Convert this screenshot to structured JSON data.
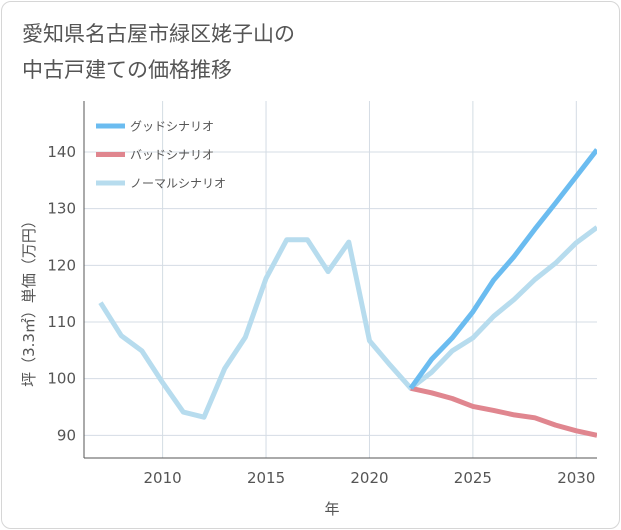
{
  "title_lines": [
    "愛知県名古屋市緑区姥子山の",
    "中古戸建ての価格推移"
  ],
  "chart_data": {
    "type": "line",
    "title": "愛知県名古屋市緑区姥子山の中古戸建ての価格推移",
    "xlabel": "年",
    "ylabel": "坪（3.3㎡）単価（万円）",
    "xlim": [
      2006.2,
      2031
    ],
    "ylim": [
      86,
      149
    ],
    "x_ticks": [
      2010,
      2015,
      2020,
      2025,
      2030
    ],
    "y_ticks": [
      90,
      100,
      110,
      120,
      130,
      140
    ],
    "grid": true,
    "legend_position": "top-left",
    "series": [
      {
        "name": "グッドシナリオ",
        "color": "#6bbcf0",
        "x": [
          2022,
          2023,
          2024,
          2025,
          2026,
          2027,
          2028,
          2029,
          2030,
          2031
        ],
        "values": [
          98.3,
          103.4,
          107.2,
          111.8,
          117.4,
          121.6,
          126.4,
          131.0,
          135.7,
          140.4
        ]
      },
      {
        "name": "バッドシナリオ",
        "color": "#e0868f",
        "x": [
          2022,
          2023,
          2024,
          2025,
          2026,
          2027,
          2028,
          2029,
          2030,
          2031
        ],
        "values": [
          98.3,
          97.5,
          96.5,
          95.1,
          94.4,
          93.6,
          93.1,
          91.8,
          90.8,
          90.0
        ]
      },
      {
        "name": "ノーマルシナリオ",
        "color": "#b7dcee",
        "x": [
          2007,
          2008,
          2009,
          2010,
          2011,
          2012,
          2013,
          2014,
          2015,
          2016,
          2017,
          2018,
          2019,
          2020,
          2021,
          2022,
          2023,
          2024,
          2025,
          2026,
          2027,
          2028,
          2029,
          2030,
          2031
        ],
        "values": [
          113.4,
          107.6,
          104.9,
          99.3,
          94.1,
          93.2,
          101.8,
          107.3,
          117.7,
          124.5,
          124.5,
          118.9,
          124.1,
          106.7,
          102.4,
          98.3,
          101.1,
          104.9,
          107.2,
          111.0,
          114.0,
          117.5,
          120.4,
          124.0,
          126.7
        ]
      }
    ]
  }
}
